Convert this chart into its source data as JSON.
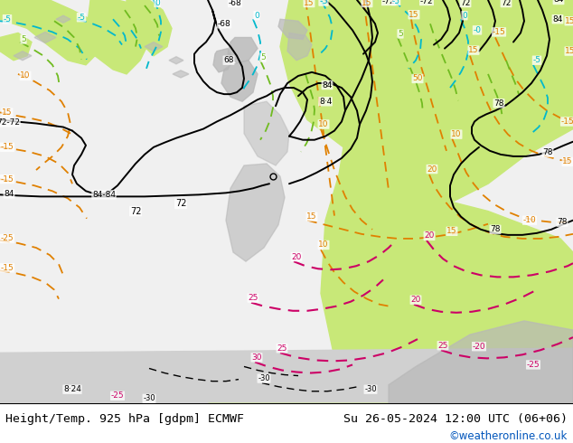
{
  "title_left": "Height/Temp. 925 hPa [gdpm] ECMWF",
  "title_right": "Su 26-05-2024 12:00 UTC (06+06)",
  "credit": "©weatheronline.co.uk",
  "fig_width": 6.34,
  "fig_height": 4.9,
  "dpi": 100,
  "title_fontsize": 9.5,
  "credit_fontsize": 8.5,
  "colors": {
    "land_green": "#c8e878",
    "land_gray": "#b8b8b8",
    "ocean_white": "#f0f0f0",
    "black": "#000000",
    "orange": "#e08000",
    "cyan": "#00b8cc",
    "green_isotherm": "#70bb20",
    "magenta": "#cc0066"
  }
}
